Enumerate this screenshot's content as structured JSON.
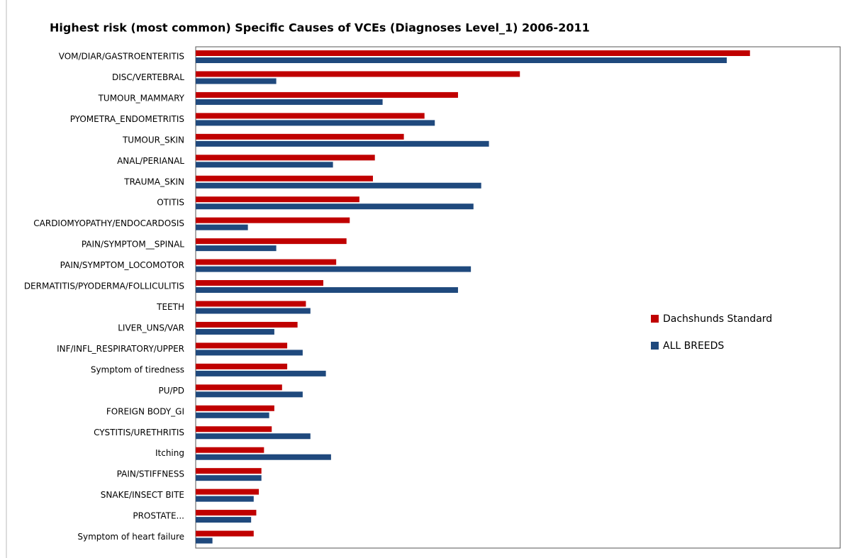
{
  "chart_data": {
    "type": "bar",
    "orientation": "horizontal",
    "title": "Highest risk (most common) Specific Causes of VCEs (Diagnoses Level_1) 2006-2011",
    "categories": [
      "VOM/DIAR/GASTROENTERITIS",
      "DISC/VERTEBRAL",
      "TUMOUR_MAMMARY",
      "PYOMETRA_ENDOMETRITIS",
      "TUMOUR_SKIN",
      "ANAL/PERIANAL",
      "TRAUMA_SKIN",
      "OTITIS",
      "CARDIOMYOPATHY/ENDOCARDOSIS",
      "PAIN/SYMPTOM__SPINAL",
      "PAIN/SYMPTOM_LOCOMOTOR",
      "DERMATITIS/PYODERMA/FOLLICULITIS",
      "TEETH",
      "LIVER_UNS/VAR",
      "INF/INFL_RESPIRATORY/UPPER",
      "Symptom of tiredness",
      "PU/PD",
      "FOREIGN BODY_GI",
      "CYSTITIS/URETHRITIS",
      "Itching",
      "PAIN/STIFFNESS",
      "SNAKE/INSECT BITE",
      "PROSTATE...",
      "Symptom of heart failure"
    ],
    "series": [
      {
        "name": "Dachshunds Standard",
        "color": "#c00000",
        "values": [
          86.0,
          50.3,
          40.7,
          35.5,
          32.3,
          27.8,
          27.5,
          25.4,
          23.9,
          23.4,
          21.8,
          19.8,
          17.1,
          15.8,
          14.2,
          14.2,
          13.4,
          12.2,
          11.8,
          10.6,
          10.2,
          9.8,
          9.4,
          9.0
        ]
      },
      {
        "name": "ALL BREEDS",
        "color": "#1f497d",
        "values": [
          82.4,
          12.5,
          29.0,
          37.1,
          45.5,
          21.3,
          44.3,
          43.1,
          8.1,
          12.5,
          42.7,
          40.7,
          17.8,
          12.2,
          16.6,
          20.2,
          16.6,
          11.4,
          17.8,
          21.0,
          10.2,
          9.0,
          8.6,
          2.6
        ]
      }
    ],
    "xlim": [
      0,
      100
    ],
    "legend": "right"
  }
}
